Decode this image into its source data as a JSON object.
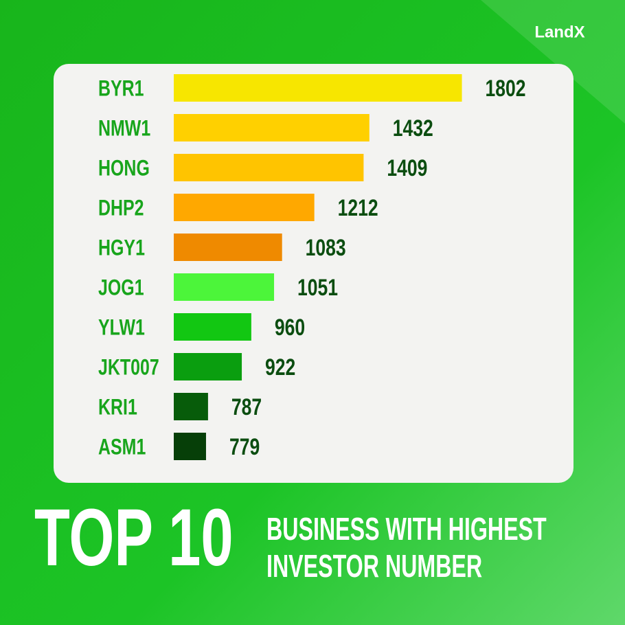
{
  "brand": "LandX",
  "chart_data": {
    "type": "bar",
    "orientation": "horizontal",
    "title": "TOP 10",
    "subtitle": [
      "BUSINESS WITH HIGHEST",
      "INVESTOR NUMBER"
    ],
    "categories": [
      "BYR1",
      "NMW1",
      "HONG",
      "DHP2",
      "HGY1",
      "JOG1",
      "YLW1",
      "JKT007",
      "KRI1",
      "ASM1"
    ],
    "values": [
      1802,
      1432,
      1409,
      1212,
      1083,
      1051,
      960,
      922,
      787,
      779
    ],
    "colors": [
      "#f7e600",
      "#ffd000",
      "#ffc400",
      "#ffa800",
      "#ef8a00",
      "#4cf53a",
      "#12c712",
      "#0a9e0f",
      "#075c0a",
      "#063f08"
    ],
    "xlim": [
      650,
      1850
    ]
  }
}
